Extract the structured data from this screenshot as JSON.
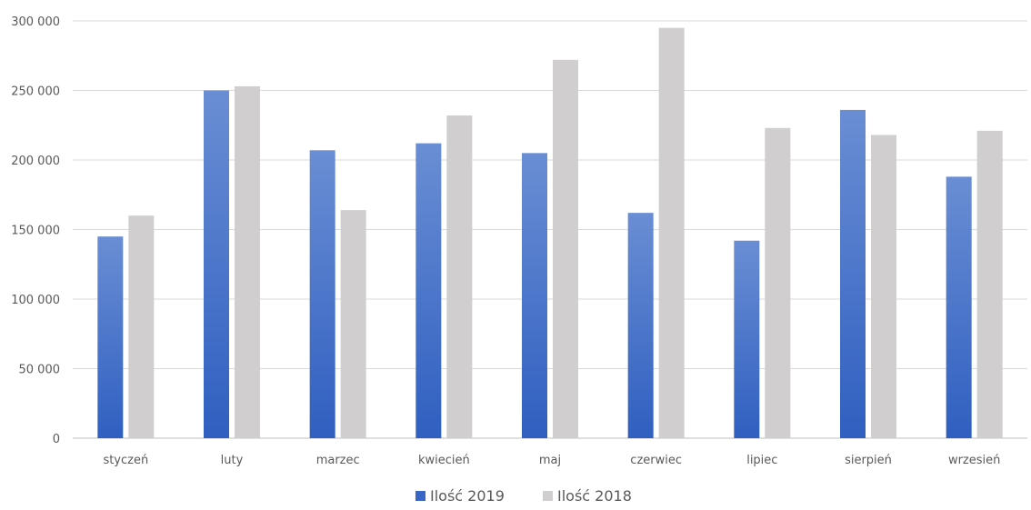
{
  "chart_data": {
    "type": "bar",
    "categories": [
      "styczeń",
      "luty",
      "marzec",
      "kwiecień",
      "maj",
      "czerwiec",
      "lipiec",
      "sierpień",
      "wrzesień"
    ],
    "series": [
      {
        "name": "Ilość 2019",
        "values": [
          145000,
          250000,
          207000,
          212000,
          205000,
          162000,
          142000,
          236000,
          188000
        ],
        "color": "#4472c4"
      },
      {
        "name": "Ilość 2018",
        "values": [
          160000,
          253000,
          164000,
          232000,
          272000,
          295000,
          223000,
          218000,
          221000
        ],
        "color": "#d0cece"
      }
    ],
    "y_ticks": [
      "0",
      "50 000",
      "100 000",
      "150 000",
      "200 000",
      "250 000",
      "300 000"
    ],
    "ylim": [
      0,
      300000
    ],
    "grid": true,
    "legend_position": "bottom"
  }
}
